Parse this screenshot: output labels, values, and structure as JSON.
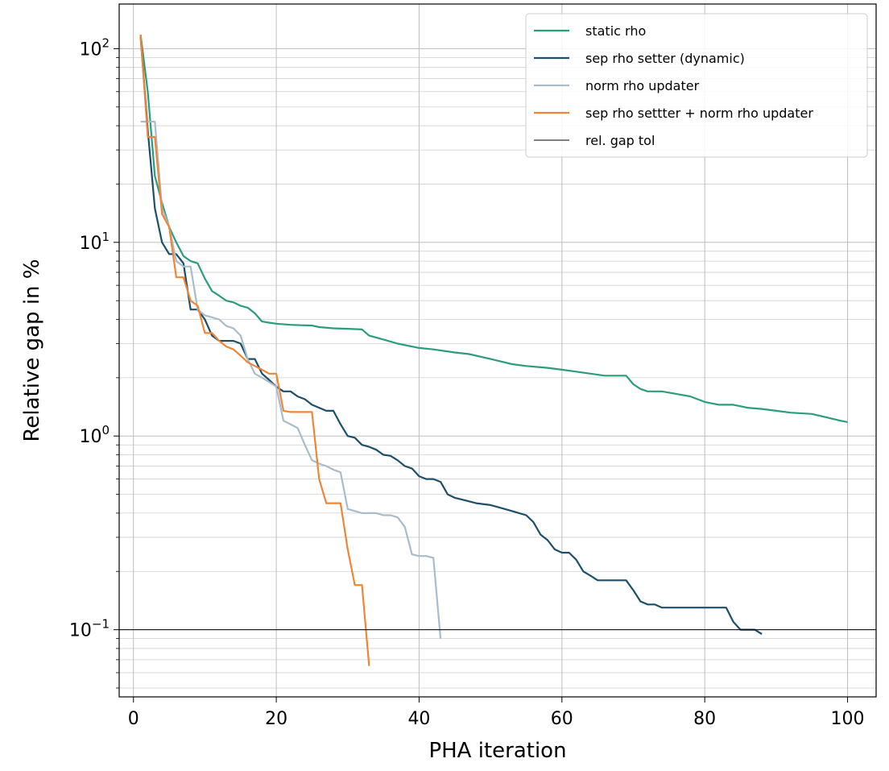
{
  "chart_data": {
    "type": "line",
    "xlabel": "PHA iteration",
    "ylabel": "Relative gap in %",
    "xlim": [
      -2,
      104
    ],
    "ylim": [
      0.045,
      170
    ],
    "yscale": "log",
    "grid": true,
    "legend_position": "top-right",
    "x_ticks": [
      0,
      20,
      40,
      60,
      80,
      100
    ],
    "x_tick_labels": [
      "0",
      "20",
      "40",
      "60",
      "80",
      "100"
    ],
    "y_major_ticks": [
      {
        "value": 100,
        "base": "10",
        "exp": "2"
      },
      {
        "value": 10,
        "base": "10",
        "exp": "1"
      },
      {
        "value": 1,
        "base": "10",
        "exp": "0"
      },
      {
        "value": 0.1,
        "base": "10",
        "exp": "−1"
      }
    ],
    "series": [
      {
        "name": "static rho",
        "color": "#2a9d7c",
        "points": [
          [
            1,
            118
          ],
          [
            2,
            60
          ],
          [
            3,
            22
          ],
          [
            4,
            16
          ],
          [
            5,
            12
          ],
          [
            6,
            10
          ],
          [
            7,
            8.5
          ],
          [
            8,
            8
          ],
          [
            9,
            7.8
          ],
          [
            10,
            6.5
          ],
          [
            11,
            5.6
          ],
          [
            12,
            5.3
          ],
          [
            13,
            5.0
          ],
          [
            14,
            4.9
          ],
          [
            15,
            4.7
          ],
          [
            16,
            4.6
          ],
          [
            17,
            4.3
          ],
          [
            18,
            3.9
          ],
          [
            19,
            3.85
          ],
          [
            20,
            3.8
          ],
          [
            22,
            3.75
          ],
          [
            25,
            3.72
          ],
          [
            26,
            3.65
          ],
          [
            28,
            3.6
          ],
          [
            30,
            3.58
          ],
          [
            32,
            3.55
          ],
          [
            33,
            3.3
          ],
          [
            35,
            3.15
          ],
          [
            37,
            3.0
          ],
          [
            38,
            2.95
          ],
          [
            40,
            2.85
          ],
          [
            42,
            2.8
          ],
          [
            45,
            2.7
          ],
          [
            47,
            2.65
          ],
          [
            50,
            2.5
          ],
          [
            52,
            2.4
          ],
          [
            53,
            2.35
          ],
          [
            55,
            2.3
          ],
          [
            58,
            2.25
          ],
          [
            60,
            2.2
          ],
          [
            62,
            2.15
          ],
          [
            64,
            2.1
          ],
          [
            66,
            2.05
          ],
          [
            69,
            2.05
          ],
          [
            70,
            1.85
          ],
          [
            71,
            1.75
          ],
          [
            72,
            1.7
          ],
          [
            74,
            1.7
          ],
          [
            76,
            1.65
          ],
          [
            78,
            1.6
          ],
          [
            80,
            1.5
          ],
          [
            82,
            1.45
          ],
          [
            84,
            1.45
          ],
          [
            86,
            1.4
          ],
          [
            88,
            1.38
          ],
          [
            90,
            1.35
          ],
          [
            92,
            1.32
          ],
          [
            95,
            1.3
          ],
          [
            97,
            1.25
          ],
          [
            99,
            1.2
          ],
          [
            100,
            1.18
          ]
        ]
      },
      {
        "name": "sep rho setter (dynamic)",
        "color": "#1c4f6b",
        "points": [
          [
            1,
            115
          ],
          [
            2,
            38
          ],
          [
            3,
            15
          ],
          [
            4,
            10
          ],
          [
            5,
            8.7
          ],
          [
            6,
            8.7
          ],
          [
            7,
            7.8
          ],
          [
            8,
            4.5
          ],
          [
            9,
            4.5
          ],
          [
            10,
            4.0
          ],
          [
            11,
            3.3
          ],
          [
            12,
            3.1
          ],
          [
            14,
            3.1
          ],
          [
            15,
            3.0
          ],
          [
            16,
            2.5
          ],
          [
            17,
            2.5
          ],
          [
            18,
            2.1
          ],
          [
            19,
            1.95
          ],
          [
            20,
            1.8
          ],
          [
            21,
            1.7
          ],
          [
            22,
            1.7
          ],
          [
            23,
            1.6
          ],
          [
            24,
            1.55
          ],
          [
            25,
            1.45
          ],
          [
            26,
            1.4
          ],
          [
            27,
            1.35
          ],
          [
            28,
            1.35
          ],
          [
            29,
            1.15
          ],
          [
            30,
            1.0
          ],
          [
            31,
            0.98
          ],
          [
            32,
            0.9
          ],
          [
            33,
            0.88
          ],
          [
            34,
            0.85
          ],
          [
            35,
            0.8
          ],
          [
            36,
            0.79
          ],
          [
            37,
            0.75
          ],
          [
            38,
            0.7
          ],
          [
            39,
            0.68
          ],
          [
            40,
            0.62
          ],
          [
            41,
            0.6
          ],
          [
            42,
            0.6
          ],
          [
            43,
            0.58
          ],
          [
            44,
            0.5
          ],
          [
            45,
            0.48
          ],
          [
            46,
            0.47
          ],
          [
            47,
            0.46
          ],
          [
            48,
            0.45
          ],
          [
            50,
            0.44
          ],
          [
            51,
            0.43
          ],
          [
            52,
            0.42
          ],
          [
            53,
            0.41
          ],
          [
            54,
            0.4
          ],
          [
            55,
            0.39
          ],
          [
            56,
            0.36
          ],
          [
            57,
            0.31
          ],
          [
            58,
            0.29
          ],
          [
            59,
            0.26
          ],
          [
            60,
            0.25
          ],
          [
            61,
            0.25
          ],
          [
            62,
            0.23
          ],
          [
            63,
            0.2
          ],
          [
            64,
            0.19
          ],
          [
            65,
            0.18
          ],
          [
            66,
            0.18
          ],
          [
            67,
            0.18
          ],
          [
            68,
            0.18
          ],
          [
            69,
            0.18
          ],
          [
            70,
            0.16
          ],
          [
            71,
            0.14
          ],
          [
            72,
            0.135
          ],
          [
            73,
            0.135
          ],
          [
            74,
            0.13
          ],
          [
            75,
            0.13
          ],
          [
            76,
            0.13
          ],
          [
            78,
            0.13
          ],
          [
            80,
            0.13
          ],
          [
            82,
            0.13
          ],
          [
            83,
            0.13
          ],
          [
            84,
            0.11
          ],
          [
            85,
            0.1
          ],
          [
            86,
            0.1
          ],
          [
            87,
            0.1
          ],
          [
            88,
            0.095
          ]
        ]
      },
      {
        "name": "norm rho updater",
        "color": "#a8bccb",
        "points": [
          [
            1,
            42
          ],
          [
            2,
            42
          ],
          [
            3,
            42
          ],
          [
            4,
            15
          ],
          [
            5,
            12
          ],
          [
            6,
            8
          ],
          [
            7,
            7.5
          ],
          [
            8,
            7.5
          ],
          [
            9,
            4.5
          ],
          [
            10,
            4.2
          ],
          [
            11,
            4.1
          ],
          [
            12,
            4.0
          ],
          [
            13,
            3.7
          ],
          [
            14,
            3.6
          ],
          [
            15,
            3.3
          ],
          [
            16,
            2.5
          ],
          [
            17,
            2.1
          ],
          [
            18,
            2.0
          ],
          [
            19,
            1.9
          ],
          [
            20,
            1.8
          ],
          [
            21,
            1.2
          ],
          [
            22,
            1.15
          ],
          [
            23,
            1.1
          ],
          [
            24,
            0.9
          ],
          [
            25,
            0.75
          ],
          [
            26,
            0.72
          ],
          [
            27,
            0.7
          ],
          [
            28,
            0.67
          ],
          [
            29,
            0.65
          ],
          [
            30,
            0.42
          ],
          [
            31,
            0.41
          ],
          [
            32,
            0.4
          ],
          [
            33,
            0.4
          ],
          [
            34,
            0.4
          ],
          [
            35,
            0.39
          ],
          [
            36,
            0.39
          ],
          [
            37,
            0.38
          ],
          [
            38,
            0.34
          ],
          [
            39,
            0.245
          ],
          [
            40,
            0.24
          ],
          [
            41,
            0.24
          ],
          [
            42,
            0.235
          ],
          [
            43,
            0.09
          ]
        ]
      },
      {
        "name": "sep rho settter + norm rho updater",
        "color": "#f08536",
        "points": [
          [
            1,
            118
          ],
          [
            2,
            35
          ],
          [
            3,
            35
          ],
          [
            4,
            14
          ],
          [
            5,
            12
          ],
          [
            6,
            6.6
          ],
          [
            7,
            6.6
          ],
          [
            8,
            5.0
          ],
          [
            9,
            4.7
          ],
          [
            10,
            3.4
          ],
          [
            11,
            3.4
          ],
          [
            12,
            3.1
          ],
          [
            13,
            2.9
          ],
          [
            14,
            2.8
          ],
          [
            15,
            2.6
          ],
          [
            16,
            2.4
          ],
          [
            17,
            2.3
          ],
          [
            18,
            2.2
          ],
          [
            19,
            2.1
          ],
          [
            20,
            2.1
          ],
          [
            21,
            1.35
          ],
          [
            22,
            1.33
          ],
          [
            25,
            1.33
          ],
          [
            26,
            0.6
          ],
          [
            27,
            0.45
          ],
          [
            28,
            0.45
          ],
          [
            29,
            0.45
          ],
          [
            30,
            0.26
          ],
          [
            31,
            0.17
          ],
          [
            32,
            0.17
          ],
          [
            33,
            0.065
          ]
        ]
      },
      {
        "name": "rel. gap tol",
        "color": "#000000",
        "hline": 0.1
      }
    ]
  }
}
